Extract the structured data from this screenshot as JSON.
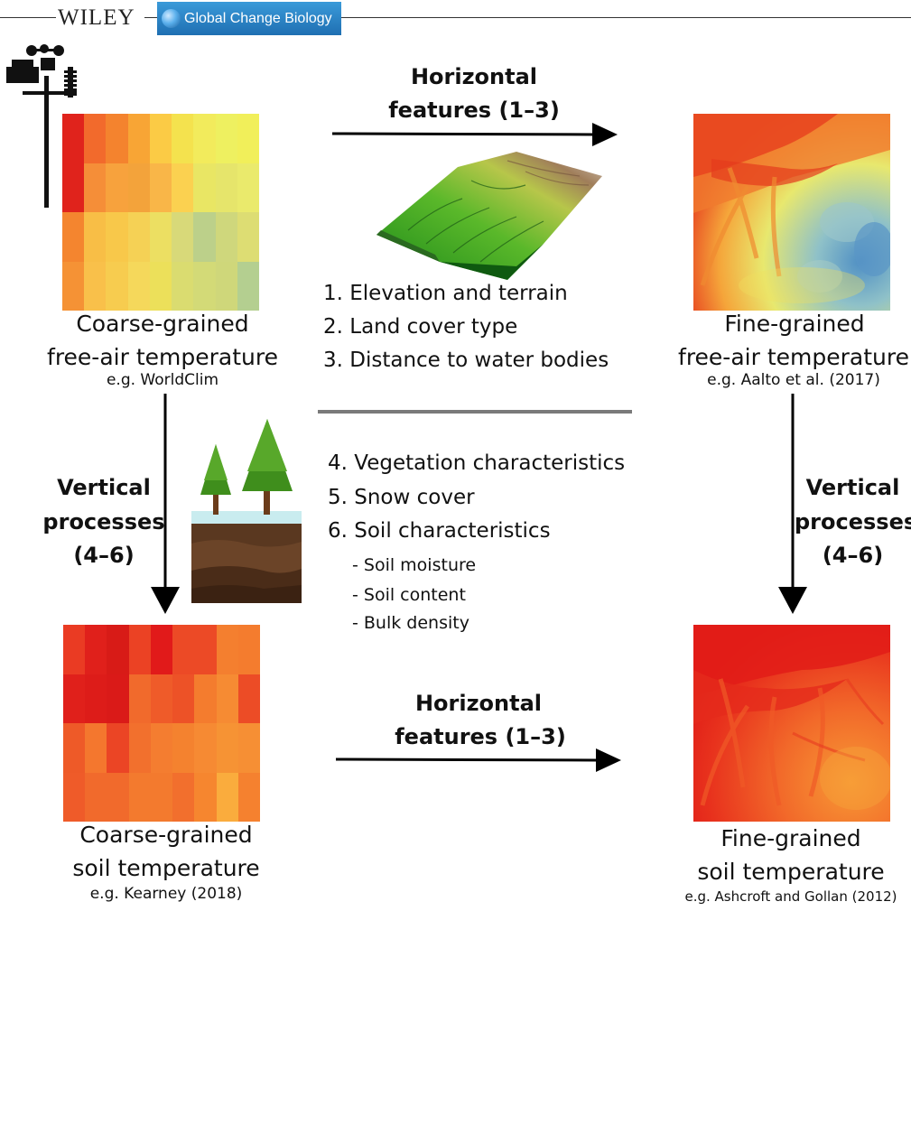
{
  "header": {
    "publisher": "WILEY",
    "journal": "Global Change Biology"
  },
  "panels": {
    "coarse_air": {
      "title": "Coarse-grained",
      "subtitle": "free-air temperature",
      "example": "e.g. WorldClim"
    },
    "fine_air": {
      "title": "Fine-grained",
      "subtitle": "free-air temperature",
      "example": "e.g. Aalto et al. (2017)"
    },
    "coarse_soil": {
      "title": "Coarse-grained",
      "subtitle": "soil temperature",
      "example": "e.g. Kearney (2018)"
    },
    "fine_soil": {
      "title": "Fine-grained",
      "subtitle": "soil temperature",
      "example": "e.g. Ashcroft and Gollan (2012)"
    }
  },
  "arrows": {
    "top_horizontal": {
      "line1": "Horizontal",
      "line2": "features (1–3)"
    },
    "bottom_horizontal": {
      "line1": "Horizontal",
      "line2": "features (1–3)"
    },
    "left_vertical": {
      "line1": "Vertical",
      "line2": "processes",
      "line3": "(4–6)"
    },
    "right_vertical": {
      "line1": "Vertical",
      "line2": "processes",
      "line3": "(4–6)"
    }
  },
  "horizontal_features": [
    "1. Elevation and terrain",
    "2. Land cover type",
    "3. Distance to water bodies"
  ],
  "vertical_processes": [
    "4. Vegetation characteristics",
    "5. Snow cover",
    "6. Soil characteristics"
  ],
  "soil_subitems": [
    "- Soil moisture",
    "- Soil content",
    "- Bulk density"
  ],
  "icons": {
    "weather_station": "weather-station-icon",
    "terrain": "terrain-3d-icon",
    "trees_soil": "trees-soil-profile-icon"
  },
  "colors": {
    "arrow": "#000000",
    "divider": "#7a7a7a",
    "journal_bg": "#2a84c8"
  },
  "coarse_air_grid": [
    [
      "#e0231c",
      "#f26a2c",
      "#f4832e",
      "#f8a535",
      "#fbcb45",
      "#f4e24e",
      "#f2eb5c",
      "#eef060",
      "#f1ef5a"
    ],
    [
      "#e0231c",
      "#f58e38",
      "#f7a23d",
      "#f3a33b",
      "#f9b648",
      "#fbd150",
      "#e9e664",
      "#e6e56b",
      "#eaea6c"
    ],
    [
      "#f4852f",
      "#f8be46",
      "#f8c84a",
      "#f5d155",
      "#ecdf62",
      "#d8d979",
      "#bcd08a",
      "#cfd77c",
      "#dddd73"
    ],
    [
      "#f59235",
      "#f9c04a",
      "#f7cc4f",
      "#f5d85b",
      "#ece05a",
      "#dadc70",
      "#d3da77",
      "#cfd77a",
      "#b4cf90"
    ]
  ],
  "coarse_soil_grid": [
    [
      "#ea3b23",
      "#e0201b",
      "#d81b17",
      "#eb4224",
      "#e11a1a",
      "#ec4a26",
      "#ec4a26",
      "#f47f2f",
      "#f47c2e"
    ],
    [
      "#e0201b",
      "#dd1c19",
      "#da1a18",
      "#f16a2c",
      "#ef5b29",
      "#ed5227",
      "#f47c2e",
      "#f68b33",
      "#ec4c26"
    ],
    [
      "#ee5a28",
      "#f4772e",
      "#eb4525",
      "#f2702d",
      "#f47d30",
      "#f4822f",
      "#f68a33",
      "#f69334",
      "#f68f34"
    ],
    [
      "#ef5b29",
      "#f16a2c",
      "#f16a2c",
      "#f37a2e",
      "#f37a2e",
      "#f26f2d",
      "#f6862f",
      "#faac3d",
      "#f5812f"
    ]
  ]
}
